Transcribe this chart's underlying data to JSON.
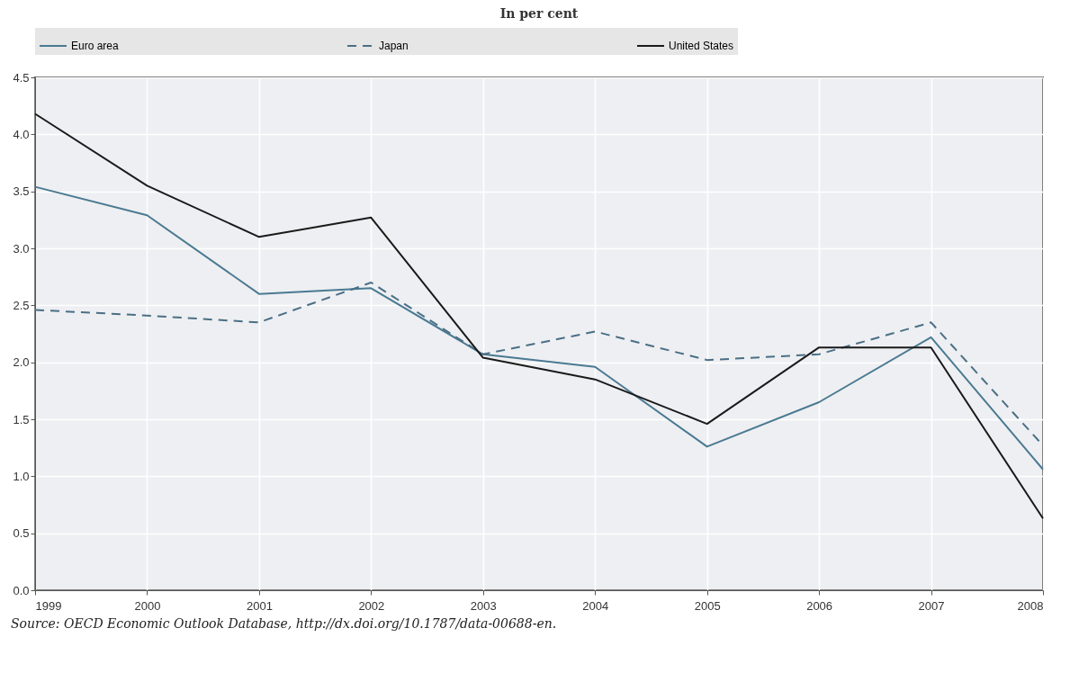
{
  "chart_data": {
    "type": "line",
    "title": "In per cent",
    "x": [
      1999,
      2000,
      2001,
      2002,
      2003,
      2004,
      2005,
      2006,
      2007,
      2008
    ],
    "series": [
      {
        "name": "Euro area",
        "color": "#4a7a92",
        "line_style": "solid",
        "values": [
          3.54,
          3.29,
          2.6,
          2.65,
          2.07,
          1.96,
          1.26,
          1.65,
          2.22,
          1.06
        ]
      },
      {
        "name": "Japan",
        "color": "#4a6f86",
        "line_style": "dashed",
        "values": [
          2.46,
          2.41,
          2.35,
          2.7,
          2.07,
          2.27,
          2.02,
          2.07,
          2.35,
          1.27
        ]
      },
      {
        "name": "United States",
        "color": "#1a1a1a",
        "line_style": "solid",
        "values": [
          4.18,
          3.55,
          3.1,
          3.27,
          2.04,
          1.85,
          1.46,
          2.13,
          2.13,
          0.63
        ]
      }
    ],
    "xlim": [
      1999,
      2008
    ],
    "xticks": [
      1999,
      2000,
      2001,
      2002,
      2003,
      2004,
      2005,
      2006,
      2007,
      2008
    ],
    "ylim": [
      0,
      4.5
    ],
    "yticks": [
      {
        "value": 0,
        "label": "0.0"
      },
      0.5,
      {
        "value": 1,
        "label": "1.0"
      },
      1.5,
      {
        "value": 2,
        "label": "2.0"
      },
      2.5,
      {
        "value": 3,
        "label": "3.0"
      },
      3.5,
      {
        "value": 4,
        "label": "4.0"
      },
      4.5
    ],
    "grid": true,
    "legend": "top",
    "marker": "none",
    "annotations": [
      "Source:  OECD Economic Outlook Database, http://dx.doi.org/10.1787/data-00688-en."
    ]
  }
}
